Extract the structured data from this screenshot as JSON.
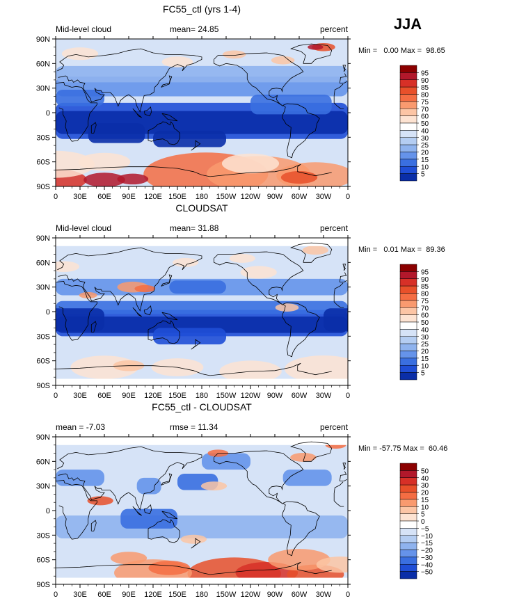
{
  "season_label": "JJA",
  "colors": {
    "ocean_bg": "#c9dcf5",
    "coast": "#000000"
  },
  "chart_data": [
    {
      "type": "heatmap",
      "title": "FC55_ctl (yrs 1-4)",
      "left_label": "Mid-level cloud",
      "center_label": "mean=  24.85",
      "right_label": "percent",
      "mean": 24.85,
      "minmax_label": "Min =   0.00 Max =  98.65",
      "min": 0.0,
      "max": 98.65,
      "xticks": [
        "0",
        "30E",
        "60E",
        "90E",
        "120E",
        "150E",
        "180",
        "150W",
        "120W",
        "90W",
        "60W",
        "30W",
        "0"
      ],
      "yticks": [
        "90N",
        "60N",
        "30N",
        "0",
        "30S",
        "60S",
        "90S"
      ],
      "colorbar": {
        "labels": [
          "95",
          "90",
          "85",
          "80",
          "75",
          "70",
          "60",
          "50",
          "40",
          "30",
          "25",
          "20",
          "15",
          "10",
          "5"
        ],
        "colors": [
          "#8b0000",
          "#b2182b",
          "#d73027",
          "#e8502a",
          "#f46d43",
          "#f99a6f",
          "#fcc5a5",
          "#fde3d2",
          "#ffffff",
          "#d6e3f7",
          "#b4cdf2",
          "#8fb3ee",
          "#6593ea",
          "#3a6fe0",
          "#1f4ed6",
          "#0a2ea8"
        ]
      }
    },
    {
      "type": "heatmap",
      "title": "CLOUDSAT",
      "left_label": "Mid-level cloud",
      "center_label": "mean=  31.88",
      "right_label": "percent",
      "mean": 31.88,
      "minmax_label": "Min =   0.01 Max =  89.36",
      "min": 0.01,
      "max": 89.36,
      "xticks": [
        "0",
        "30E",
        "60E",
        "90E",
        "120E",
        "150E",
        "180",
        "150W",
        "120W",
        "90W",
        "60W",
        "30W",
        "0"
      ],
      "yticks": [
        "90N",
        "60N",
        "30N",
        "0",
        "30S",
        "60S",
        "90S"
      ],
      "colorbar": {
        "labels": [
          "95",
          "90",
          "85",
          "80",
          "75",
          "70",
          "60",
          "50",
          "40",
          "30",
          "25",
          "20",
          "15",
          "10",
          "5"
        ],
        "colors": [
          "#8b0000",
          "#b2182b",
          "#d73027",
          "#e8502a",
          "#f46d43",
          "#f99a6f",
          "#fcc5a5",
          "#fde3d2",
          "#ffffff",
          "#d6e3f7",
          "#b4cdf2",
          "#8fb3ee",
          "#6593ea",
          "#3a6fe0",
          "#1f4ed6",
          "#0a2ea8"
        ]
      }
    },
    {
      "type": "heatmap",
      "title": "FC55_ctl - CLOUDSAT",
      "left_label": "mean =  -7.03",
      "center_label": "rmse =  11.34",
      "right_label": "percent",
      "mean": -7.03,
      "rmse": 11.34,
      "minmax_label": "Min = -57.75 Max =  60.46",
      "min": -57.75,
      "max": 60.46,
      "xticks": [
        "0",
        "30E",
        "60E",
        "90E",
        "120E",
        "150E",
        "180",
        "150W",
        "120W",
        "90W",
        "60W",
        "30W",
        "0"
      ],
      "yticks": [
        "90N",
        "60N",
        "30N",
        "0",
        "30S",
        "60S",
        "90S"
      ],
      "colorbar": {
        "labels": [
          "50",
          "40",
          "30",
          "20",
          "15",
          "10",
          "5",
          "0",
          "−5",
          "−10",
          "−15",
          "−20",
          "−30",
          "−40",
          "−50"
        ],
        "colors": [
          "#8b0000",
          "#b2182b",
          "#d73027",
          "#e8502a",
          "#f46d43",
          "#f99a6f",
          "#fcc5a5",
          "#fde3d2",
          "#ffffff",
          "#d6e3f7",
          "#b4cdf2",
          "#8fb3ee",
          "#6593ea",
          "#3a6fe0",
          "#1f4ed6",
          "#0a2ea8"
        ]
      }
    }
  ]
}
